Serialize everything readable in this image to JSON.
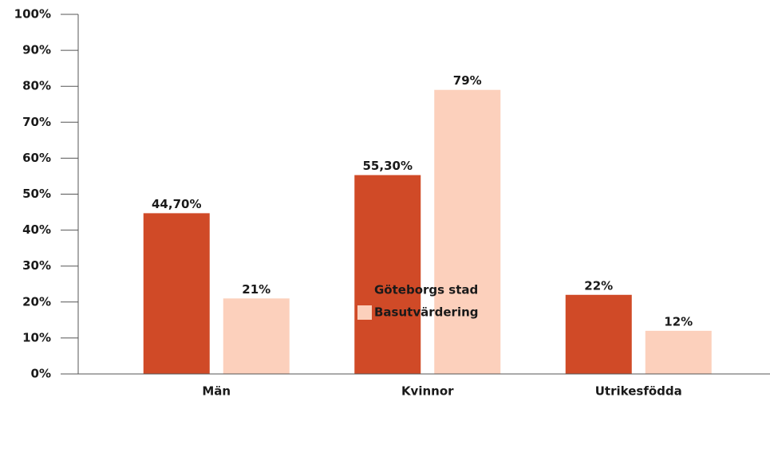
{
  "chart_data": {
    "type": "bar",
    "categories": [
      "Män",
      "Kvinnor",
      "Utrikesfödda"
    ],
    "series": [
      {
        "name": "Göteborgs stad",
        "color": "#d04a27",
        "values": [
          44.7,
          55.3,
          22
        ],
        "value_labels": [
          "44,70%",
          "55,30%",
          "22%"
        ]
      },
      {
        "name": "Basutvärdering",
        "color": "#fcd0bc",
        "values": [
          21,
          79,
          12
        ],
        "value_labels": [
          "21%",
          "79%",
          "12%"
        ]
      }
    ],
    "ylim": [
      0,
      100
    ],
    "yticks": [
      {
        "value": 0,
        "label": "0%"
      },
      {
        "value": 10,
        "label": "10%"
      },
      {
        "value": 20,
        "label": "20%"
      },
      {
        "value": 30,
        "label": "30%"
      },
      {
        "value": 40,
        "label": "40%"
      },
      {
        "value": 50,
        "label": "50%"
      },
      {
        "value": 60,
        "label": "60%"
      },
      {
        "value": 70,
        "label": "70%"
      },
      {
        "value": 80,
        "label": "80%"
      },
      {
        "value": 90,
        "label": "90%"
      },
      {
        "value": 100,
        "label": "100%"
      }
    ],
    "legend": "bottom"
  }
}
